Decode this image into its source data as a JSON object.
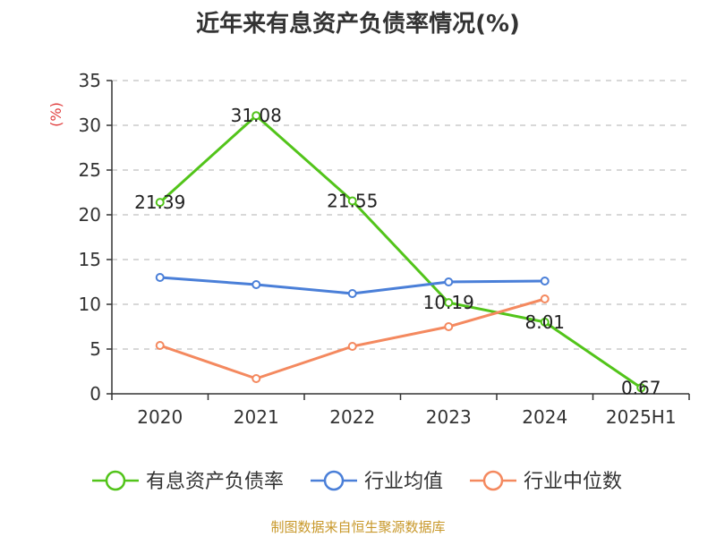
{
  "chart_data": {
    "type": "line",
    "title": "近年来有息资产负债率情况(%)",
    "ylabel": "(%)",
    "ylim": [
      0,
      35
    ],
    "yticks": [
      0,
      5,
      10,
      15,
      20,
      25,
      30,
      35
    ],
    "categories": [
      "2020",
      "2021",
      "2022",
      "2023",
      "2024",
      "2025H1"
    ],
    "grid": true,
    "legend_position": "bottom",
    "series": [
      {
        "name": "有息资产负债率",
        "color": "#52c41a",
        "values": [
          21.39,
          31.08,
          21.55,
          10.19,
          8.01,
          0.67
        ],
        "labels": [
          "21.39",
          "31.08",
          "21.55",
          "10.19",
          "8.01",
          "0.67"
        ]
      },
      {
        "name": "行业均值",
        "color": "#4a7fd8",
        "values": [
          13.0,
          12.2,
          11.2,
          12.5,
          12.6,
          null
        ]
      },
      {
        "name": "行业中位数",
        "color": "#f4895f",
        "values": [
          5.4,
          1.7,
          5.3,
          7.5,
          10.6,
          null
        ]
      }
    ]
  },
  "footer": "制图数据来自恒生聚源数据库"
}
